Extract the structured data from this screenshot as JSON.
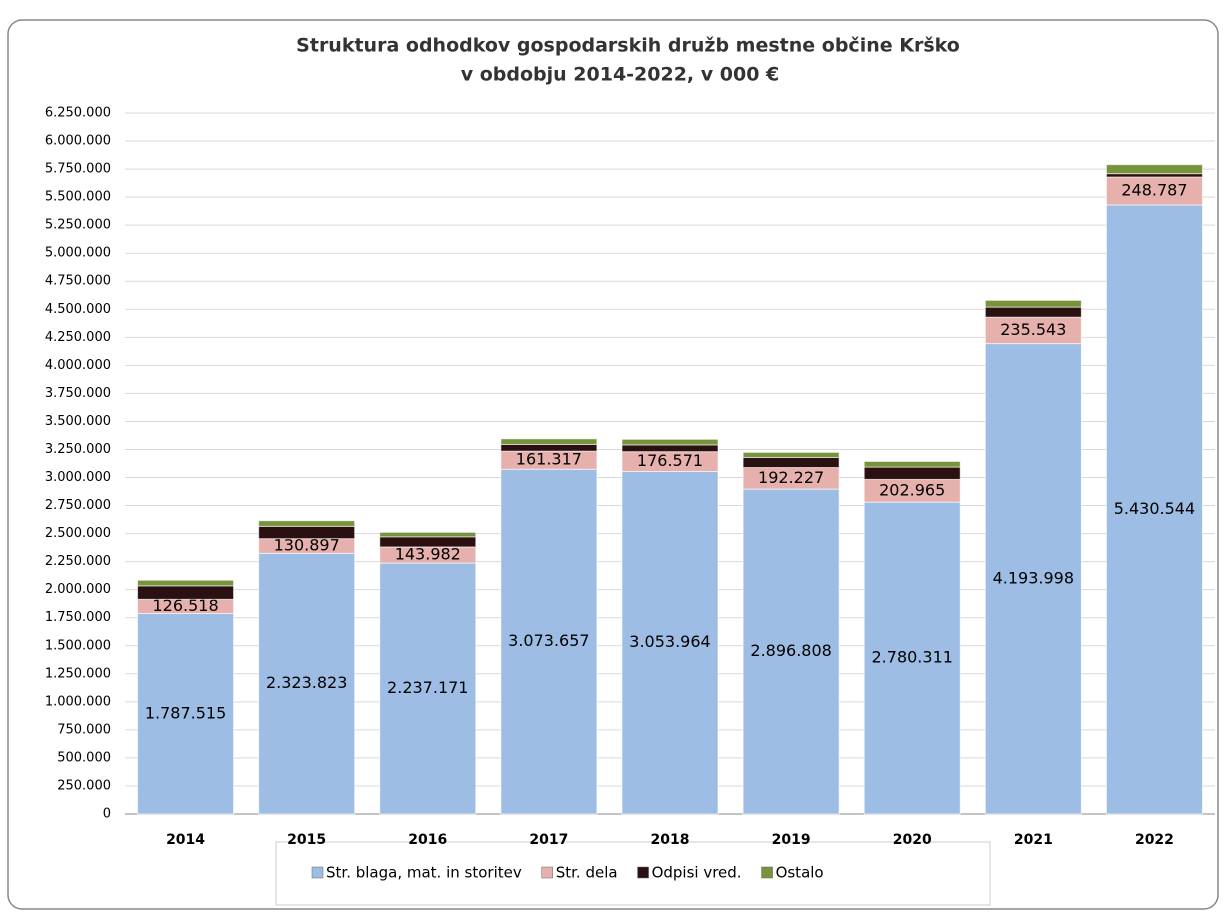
{
  "chart_data": {
    "type": "stacked_bar",
    "title": "Struktura odhodkov gospodarskih družb  mestne občine Krško",
    "subtitle": "v obdobju  2014-2022, v 000 €",
    "categories": [
      "2014",
      "2015",
      "2016",
      "2017",
      "2018",
      "2019",
      "2020",
      "2021",
      "2022"
    ],
    "series": [
      {
        "name": "Str. blaga, mat. in storitev",
        "color": "#9dbde5",
        "values": [
          1787515,
          2323823,
          2237171,
          3073657,
          3053964,
          2896808,
          2780311,
          4193998,
          5430544
        ],
        "value_labels": [
          "1.787.515",
          "2.323.823",
          "2.237.171",
          "3.073.657",
          "3.053.964",
          "2.896.808",
          "2.780.311",
          "4.193.998",
          "5.430.544"
        ]
      },
      {
        "name": "Str. dela",
        "color": "#e6b0ad",
        "values": [
          126518,
          130897,
          143982,
          161317,
          176571,
          192227,
          202965,
          235543,
          248787
        ],
        "value_labels": [
          "126.518",
          "130.897",
          "143.982",
          "161.317",
          "176.571",
          "192.227",
          "202.965",
          "235.543",
          "248.787"
        ]
      },
      {
        "name": "Odpisi vred.",
        "color": "#2a1010",
        "values": [
          120000,
          110000,
          90000,
          60000,
          60000,
          90000,
          110000,
          90000,
          30000
        ]
      },
      {
        "name": "Ostalo",
        "color": "#77933c",
        "values": [
          50000,
          50000,
          40000,
          50000,
          50000,
          45000,
          50000,
          60000,
          80000
        ]
      }
    ],
    "ylim": [
      0,
      6250000
    ],
    "yticks": [
      0,
      {
        "value": 250000,
        "label": "250.000"
      },
      {
        "value": 500000,
        "label": "500.000"
      },
      {
        "value": 750000,
        "label": "750.000"
      },
      {
        "value": 1000000,
        "label": "1.000.000"
      },
      {
        "value": 1250000,
        "label": "1.250.000"
      },
      {
        "value": 1500000,
        "label": "1.500.000"
      },
      {
        "value": 1750000,
        "label": "1.750.000"
      },
      {
        "value": 2000000,
        "label": "2.000.000"
      },
      {
        "value": 2250000,
        "label": "2.250.000"
      },
      {
        "value": 2500000,
        "label": "2.500.000"
      },
      {
        "value": 2750000,
        "label": "2.750.000"
      },
      {
        "value": 3000000,
        "label": "3.000.000"
      },
      {
        "value": 3250000,
        "label": "3.250.000"
      },
      {
        "value": 3500000,
        "label": "3.500.000"
      },
      {
        "value": 3750000,
        "label": "3.750.000"
      },
      {
        "value": 4000000,
        "label": "4.000.000"
      },
      {
        "value": 4250000,
        "label": "4.250.000"
      },
      {
        "value": 4500000,
        "label": "4.500.000"
      },
      {
        "value": 4750000,
        "label": "4.750.000"
      },
      {
        "value": 5000000,
        "label": "5.000.000"
      },
      {
        "value": 5250000,
        "label": "5.250.000"
      },
      {
        "value": 5500000,
        "label": "5.500.000"
      },
      {
        "value": 5750000,
        "label": "5.750.000"
      },
      {
        "value": 6000000,
        "label": "6.000.000"
      },
      {
        "value": 6250000,
        "label": "6.250.000"
      }
    ],
    "grid": true
  }
}
